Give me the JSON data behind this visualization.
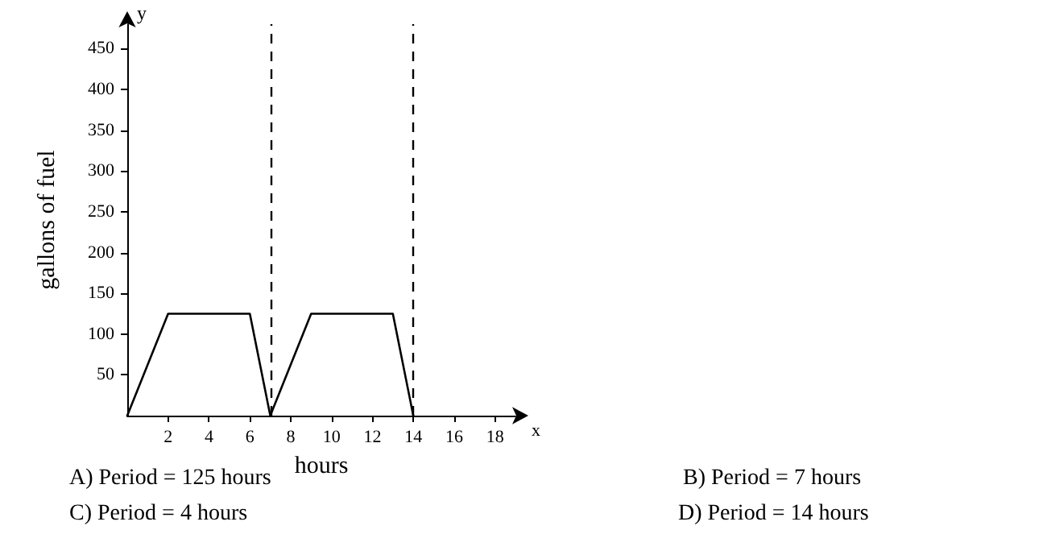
{
  "chart_data": {
    "type": "line",
    "xlabel": "hours",
    "ylabel": "gallons of fuel",
    "x": [
      0,
      2,
      6,
      7,
      9,
      13,
      14
    ],
    "series": [
      {
        "color": "#000000",
        "values": [
          0,
          125,
          125,
          0,
          125,
          125,
          0
        ]
      }
    ],
    "xlim": [
      0,
      19
    ],
    "ylim": [
      0,
      480
    ],
    "xticks": [
      2,
      4,
      6,
      8,
      10,
      12,
      14,
      16,
      18
    ],
    "yticks": [
      50,
      100,
      150,
      200,
      250,
      300,
      350,
      400,
      450
    ],
    "ref_lines": [
      {
        "axis": "x",
        "value": 7,
        "color": "#000000",
        "line_style": "dashed"
      },
      {
        "axis": "x",
        "value": 14,
        "color": "#000000",
        "line_style": "dashed"
      }
    ],
    "annotations": [
      "y",
      "x",
      "A) Period = 125 hours",
      "B) Period = 7 hours",
      "C) Period = 4 hours",
      "D) Period = 14 hours"
    ],
    "grid": false,
    "marker": "none",
    "line_style": "solid"
  }
}
